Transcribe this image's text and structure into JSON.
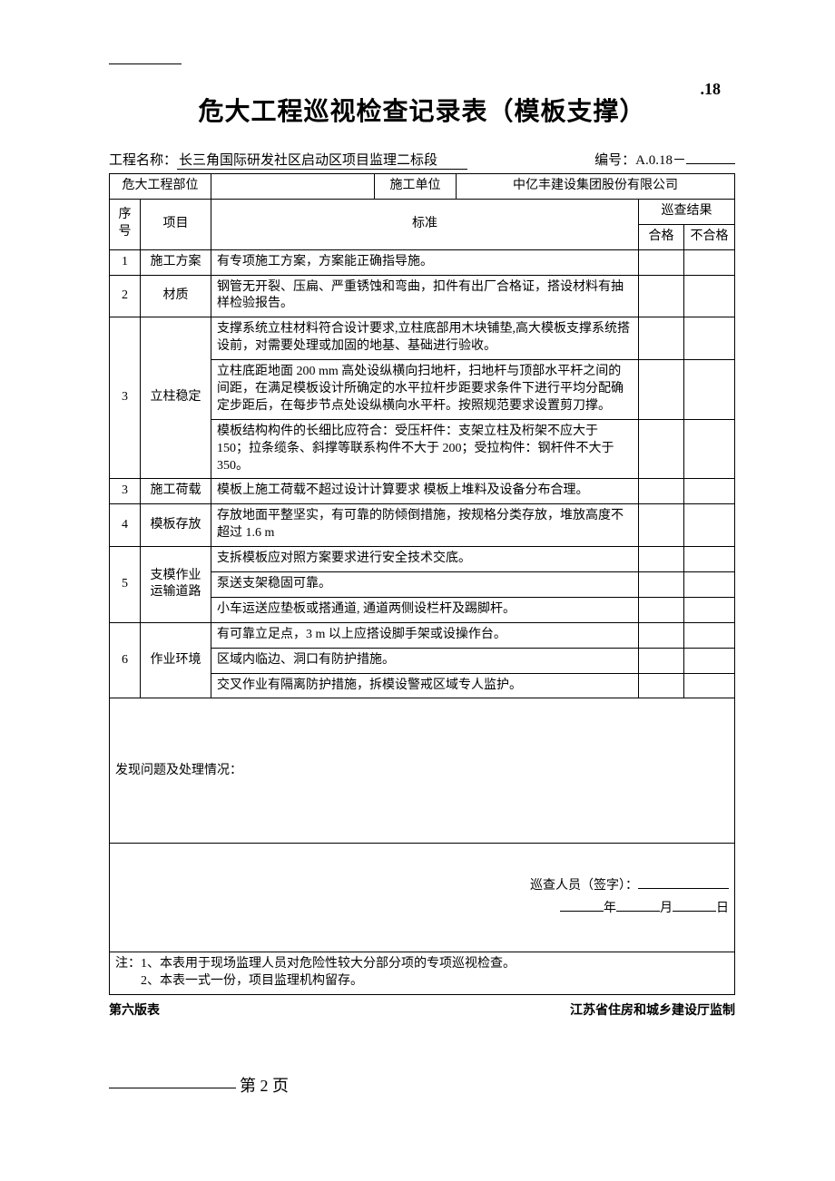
{
  "top_right": ".18",
  "title": "危大工程巡视检查记录表（模板支撑）",
  "meta": {
    "project_label": "工程名称：",
    "project_name": "长三角国际研发社区启动区项目监理二标段",
    "serial_label": "编号：A.0.18－",
    "serial_value": ""
  },
  "header_row": {
    "part_label": "危大工程部位",
    "part_value": "",
    "unit_label": "施工单位",
    "unit_value": "中亿丰建设集团股份有限公司"
  },
  "columns": {
    "no": "序号",
    "item": "项目",
    "standard": "标准",
    "result": "巡查结果",
    "qualified": "合格",
    "unqualified": "不合格"
  },
  "rows": [
    {
      "no": "1",
      "item": "施工方案",
      "rowspan": 1,
      "stds": [
        "有专项施工方案，方案能正确指导施。"
      ]
    },
    {
      "no": "2",
      "item": "材质",
      "rowspan": 1,
      "stds": [
        "钢管无开裂、压扁、严重锈蚀和弯曲，扣件有出厂合格证，搭设材料有抽样检验报告。"
      ]
    },
    {
      "no": "3",
      "item": "立柱稳定",
      "rowspan": 3,
      "stds": [
        "支撑系统立柱材料符合设计要求,立柱底部用木块铺垫,高大模板支撑系统搭设前，对需要处理或加固的地基、基础进行验收。",
        "立柱底距地面 200 mm 高处设纵横向扫地杆，扫地杆与顶部水平杆之间的间距，在满足模板设计所确定的水平拉杆步距要求条件下进行平均分配确定步距后，在每步节点处设纵横向水平杆。按照规范要求设置剪刀撑。",
        "模板结构构件的长细比应符合：受压杆件：支架立柱及桁架不应大于 150；拉条缆条、斜撑等联系构件不大于 200；受拉构件：钢杆件不大于 350。"
      ]
    },
    {
      "no": "3",
      "item": "施工荷载",
      "rowspan": 1,
      "stds": [
        "模板上施工荷载不超过设计计算要求  模板上堆料及设备分布合理。"
      ]
    },
    {
      "no": "4",
      "item": "模板存放",
      "rowspan": 1,
      "stds": [
        "存放地面平整坚实，有可靠的防倾倒措施，按规格分类存放，堆放高度不超过 1.6 m"
      ]
    },
    {
      "no": "5",
      "item": "支模作业运输道路",
      "rowspan": 3,
      "stds": [
        "支拆模板应对照方案要求进行安全技术交底。",
        "泵送支架稳固可靠。",
        "小车运送应垫板或搭通道,  通道两侧设栏杆及踢脚杆。"
      ]
    },
    {
      "no": "6",
      "item": "作业环境",
      "rowspan": 3,
      "stds": [
        "有可靠立足点，3 m 以上应搭设脚手架或设操作台。",
        "区域内临边、洞口有防护措施。",
        "交叉作业有隔离防护措施，拆模设警戒区域专人监护。"
      ]
    }
  ],
  "issues_label": "发现问题及处理情况：",
  "sign": {
    "label": "巡查人员（签字）：",
    "year": "年",
    "month": "月",
    "day": "日"
  },
  "notes": [
    "注：1、本表用于现场监理人员对危险性较大分部分项的专项巡视检查。",
    "　　2、本表一式一份，项目监理机构留存。"
  ],
  "footer": {
    "left": "第六版表",
    "right": "江苏省住房和城乡建设厅监制"
  },
  "page_number": "第 2 页"
}
